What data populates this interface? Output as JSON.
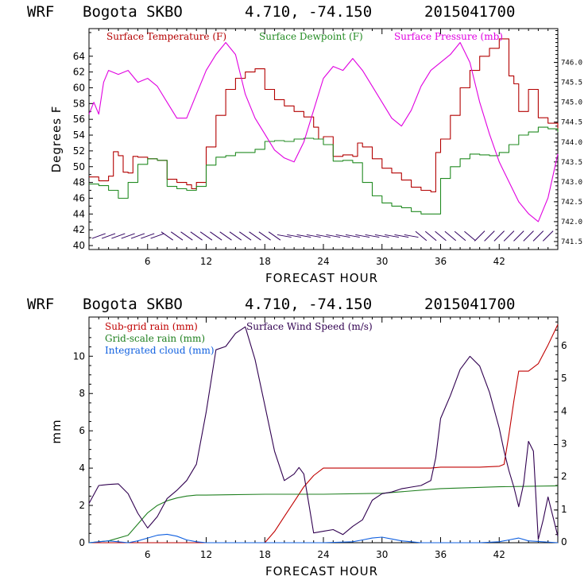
{
  "colors": {
    "temp": "#b30000",
    "dew": "#228b22",
    "pres": "#e000e0",
    "subrain": "#c00000",
    "gridrain": "#208020",
    "cloud": "#1060e0",
    "wind": "#300050",
    "barb": "#300060",
    "frame": "#000000"
  },
  "top": {
    "title": {
      "model": "WRF",
      "station": "Bogota SKBO",
      "coords": "4.710, -74.150",
      "run": "2015041700"
    },
    "xlabel": "FORECAST HOUR",
    "ylabel": "Degrees F",
    "legend": {
      "temp": "Surface Temperature (F)",
      "dew": "Surface Dewpoint (F)",
      "pres": "Surface Pressure (mb)"
    },
    "yticks": [
      "40",
      "42",
      "44",
      "46",
      "48",
      "50",
      "52",
      "54",
      "56",
      "58",
      "60",
      "62",
      "64"
    ],
    "rticks": [
      "741.5",
      "742.0",
      "742.5",
      "743.0",
      "743.5",
      "744.0",
      "744.5",
      "745.0",
      "745.5",
      "746.0"
    ],
    "xticks": [
      "6",
      "12",
      "18",
      "24",
      "30",
      "36",
      "42"
    ]
  },
  "bottom": {
    "title": {
      "model": "WRF",
      "station": "Bogota SKBO",
      "coords": "4.710, -74.150",
      "run": "2015041700"
    },
    "xlabel": "FORECAST HOUR",
    "ylabel": "mm",
    "legend": {
      "subrain": "Sub-grid rain (mm)",
      "gridrain": "Grid-scale rain (mm)",
      "cloud": "Integrated cloud (mm)",
      "wind": "Surface Wind Speed (m/s)"
    },
    "yticks": [
      "0",
      "2",
      "4",
      "6",
      "8",
      "10"
    ],
    "rticks": [
      "0",
      "1",
      "2",
      "3",
      "4",
      "5",
      "6"
    ],
    "xticks": [
      "6",
      "12",
      "18",
      "24",
      "30",
      "36",
      "42"
    ]
  },
  "chart_data": [
    {
      "type": "line",
      "title": "WRF Bogota SKBO 4.710, -74.150 2015041700",
      "xlabel": "FORECAST HOUR",
      "ylabel": "Degrees F",
      "y2label": "Surface Pressure (mb)",
      "xlim": [
        0,
        48
      ],
      "ylim": [
        39.5,
        67.5
      ],
      "y2lim": [
        741.3,
        746.85
      ],
      "series": [
        {
          "name": "Surface Temperature (F)",
          "axis": "left",
          "x": [
            0,
            1,
            2,
            2.5,
            3,
            3.5,
            4,
            4.5,
            5,
            6,
            7,
            8,
            9,
            10,
            10.5,
            11,
            12,
            13,
            14,
            15,
            16,
            17,
            18,
            19,
            20,
            21,
            22,
            23,
            23.5,
            24,
            25,
            26,
            27,
            27.5,
            28,
            29,
            30,
            31,
            32,
            33,
            34,
            35,
            35.5,
            36,
            37,
            38,
            39,
            40,
            41,
            42,
            43,
            43.5,
            44,
            45,
            46,
            47,
            48
          ],
          "y": [
            48.7,
            48.2,
            48.8,
            51.9,
            51.4,
            49.3,
            49.2,
            51.3,
            51.2,
            51.0,
            50.8,
            48.4,
            48.0,
            47.7,
            47.2,
            48.0,
            52.5,
            56.5,
            59.8,
            61.2,
            62.0,
            62.4,
            59.8,
            58.5,
            57.7,
            57.0,
            56.3,
            55.0,
            53.5,
            53.8,
            51.3,
            51.5,
            51.3,
            53.0,
            52.5,
            51.0,
            49.8,
            49.2,
            48.3,
            47.4,
            47.0,
            46.8,
            51.8,
            53.5,
            56.5,
            60.0,
            62.2,
            64.0,
            65.0,
            66.2,
            61.5,
            60.5,
            57.0,
            59.8,
            56.2,
            55.5,
            54.5
          ]
        },
        {
          "name": "Surface Dewpoint (F)",
          "axis": "left",
          "x": [
            0,
            1,
            2,
            3,
            4,
            5,
            6,
            7,
            8,
            9,
            10,
            11,
            12,
            13,
            14,
            15,
            16,
            17,
            18,
            19,
            20,
            21,
            22,
            23,
            24,
            25,
            26,
            27,
            28,
            29,
            30,
            31,
            32,
            33,
            34,
            35,
            36,
            37,
            38,
            39,
            40,
            41,
            42,
            43,
            44,
            45,
            46,
            47,
            48
          ],
          "y": [
            47.8,
            47.6,
            47.0,
            46.0,
            48.0,
            50.3,
            51.0,
            50.8,
            47.5,
            47.2,
            47.0,
            47.5,
            50.2,
            51.2,
            51.4,
            51.8,
            51.8,
            52.2,
            53.2,
            53.3,
            53.2,
            53.5,
            53.6,
            53.5,
            52.8,
            50.7,
            50.8,
            50.5,
            48.0,
            46.3,
            45.4,
            45.0,
            44.8,
            44.3,
            44.0,
            44.0,
            48.5,
            50.0,
            51.0,
            51.6,
            51.5,
            51.4,
            51.8,
            52.8,
            54.0,
            54.4,
            55.0,
            54.8,
            54.4
          ]
        },
        {
          "name": "Surface Pressure (mb)",
          "axis": "right",
          "x": [
            0,
            0.5,
            1,
            1.5,
            2,
            3,
            4,
            5,
            6,
            7,
            8,
            9,
            10,
            11,
            12,
            13,
            14,
            15,
            16,
            17,
            18,
            19,
            20,
            21,
            22,
            23,
            24,
            25,
            26,
            27,
            28,
            29,
            30,
            31,
            32,
            33,
            34,
            35,
            36,
            37,
            38,
            39,
            40,
            41,
            42,
            43,
            44,
            45,
            46,
            47,
            48
          ],
          "y": [
            744.7,
            745.0,
            744.7,
            745.5,
            745.8,
            745.7,
            745.8,
            745.5,
            745.6,
            745.4,
            745.0,
            744.6,
            744.6,
            745.2,
            745.8,
            746.2,
            746.5,
            746.2,
            745.2,
            744.6,
            744.2,
            743.8,
            743.6,
            743.5,
            744.0,
            744.8,
            745.6,
            745.9,
            745.8,
            746.1,
            745.8,
            745.4,
            745.0,
            744.6,
            744.4,
            744.8,
            745.4,
            745.8,
            746.0,
            746.2,
            746.5,
            746.0,
            745.0,
            744.2,
            743.5,
            743.0,
            742.5,
            742.2,
            742.0,
            742.6,
            743.7
          ]
        }
      ]
    },
    {
      "type": "line",
      "title": "WRF Bogota SKBO 4.710, -74.150 2015041700",
      "xlabel": "FORECAST HOUR",
      "ylabel": "mm",
      "y2label": "Surface Wind Speed (m/s)",
      "xlim": [
        0,
        48
      ],
      "ylim": [
        0,
        12.1
      ],
      "y2lim": [
        0,
        6.9
      ],
      "series": [
        {
          "name": "Sub-grid rain (mm)",
          "axis": "left",
          "x": [
            0,
            18,
            19,
            20,
            21,
            22,
            23,
            24,
            30,
            35,
            36,
            40,
            42,
            42.5,
            43,
            43.5,
            44,
            45,
            46,
            47,
            48
          ],
          "y": [
            0,
            0,
            0.6,
            1.4,
            2.2,
            3.0,
            3.6,
            4.0,
            4.0,
            4.0,
            4.05,
            4.05,
            4.1,
            4.2,
            5.8,
            7.6,
            9.2,
            9.2,
            9.6,
            10.6,
            11.7
          ]
        },
        {
          "name": "Grid-scale rain (mm)",
          "axis": "left",
          "x": [
            0,
            2,
            4,
            5,
            6,
            7,
            8,
            9,
            10,
            11,
            12,
            14,
            18,
            24,
            30,
            36,
            42,
            48
          ],
          "y": [
            0,
            0.1,
            0.4,
            1.0,
            1.6,
            2.0,
            2.25,
            2.4,
            2.5,
            2.55,
            2.55,
            2.57,
            2.6,
            2.6,
            2.65,
            2.9,
            3.0,
            3.05
          ]
        },
        {
          "name": "Integrated cloud (mm)",
          "axis": "left",
          "x": [
            0,
            1,
            2,
            3,
            4,
            5,
            6,
            7,
            8,
            9,
            10,
            11,
            12,
            20,
            24,
            27,
            28,
            29,
            30,
            31,
            32,
            33,
            34,
            36,
            40,
            42,
            43,
            44,
            45,
            48
          ],
          "y": [
            0,
            0.05,
            0.1,
            0.05,
            0.0,
            0.1,
            0.25,
            0.4,
            0.45,
            0.35,
            0.15,
            0.05,
            0,
            0,
            0,
            0.05,
            0.15,
            0.25,
            0.3,
            0.2,
            0.1,
            0.05,
            0,
            0,
            0,
            0.05,
            0.15,
            0.25,
            0.1,
            0
          ]
        },
        {
          "name": "Surface Wind Speed (m/s)",
          "axis": "right",
          "x": [
            0,
            1,
            2,
            3,
            4,
            5,
            6,
            7,
            8,
            9,
            10,
            11,
            12,
            13,
            14,
            15,
            16,
            17,
            18,
            19,
            20,
            21,
            21.5,
            22,
            22.5,
            23,
            24,
            25,
            26,
            27,
            28,
            29,
            30,
            31,
            32,
            33,
            34,
            35,
            35.5,
            36,
            37,
            38,
            39,
            40,
            41,
            42,
            42.5,
            43,
            43.5,
            44,
            44.5,
            45,
            45.5,
            46,
            46.5,
            47,
            48
          ],
          "y": [
            1.2,
            1.75,
            1.78,
            1.8,
            1.5,
            0.9,
            0.45,
            0.8,
            1.35,
            1.6,
            1.9,
            2.4,
            4.0,
            5.9,
            6.0,
            6.4,
            6.6,
            5.6,
            4.2,
            2.8,
            1.9,
            2.1,
            2.3,
            2.1,
            1.2,
            0.3,
            0.35,
            0.4,
            0.25,
            0.5,
            0.7,
            1.3,
            1.5,
            1.55,
            1.65,
            1.7,
            1.75,
            1.9,
            2.6,
            3.8,
            4.5,
            5.3,
            5.7,
            5.4,
            4.6,
            3.5,
            2.8,
            2.2,
            1.7,
            1.1,
            1.8,
            3.1,
            2.8,
            0.1,
            0.7,
            1.4,
            0.2
          ]
        }
      ]
    }
  ]
}
